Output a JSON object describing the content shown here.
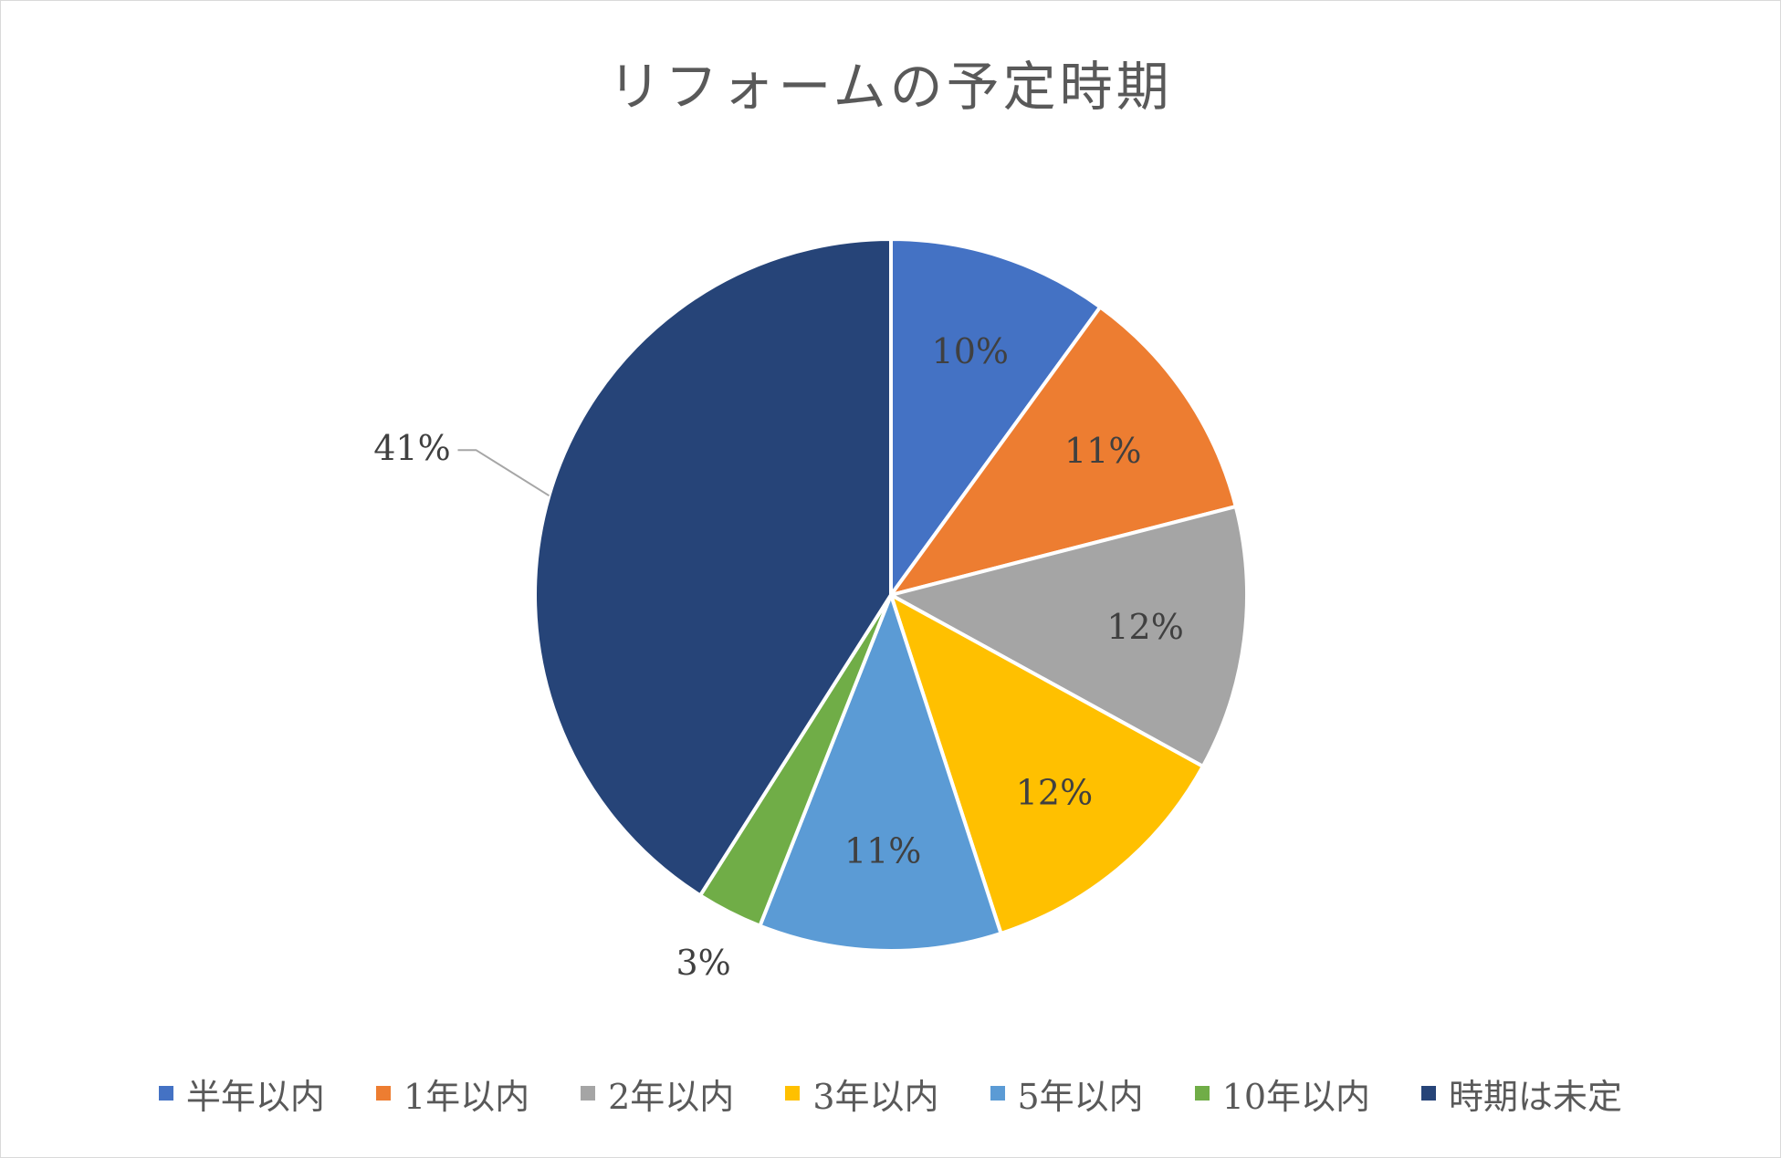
{
  "chart_data": {
    "type": "pie",
    "title": "リフォームの予定時期",
    "legend_position": "bottom",
    "start_angle_deg": 0,
    "direction": "clockwise",
    "slices": [
      {
        "label": "半年以内",
        "value": 10,
        "display": "10%",
        "color": "#4472C4",
        "label_position": "inside"
      },
      {
        "label": "1年以内",
        "value": 11,
        "display": "11%",
        "color": "#ED7D31",
        "label_position": "inside"
      },
      {
        "label": "2年以内",
        "value": 12,
        "display": "12%",
        "color": "#A5A5A5",
        "label_position": "inside"
      },
      {
        "label": "3年以内",
        "value": 12,
        "display": "12%",
        "color": "#FFC000",
        "label_position": "inside"
      },
      {
        "label": "5年以内",
        "value": 11,
        "display": "11%",
        "color": "#5B9BD5",
        "label_position": "inside"
      },
      {
        "label": "10年以内",
        "value": 3,
        "display": "3%",
        "color": "#70AD47",
        "label_position": "outside"
      },
      {
        "label": "時期は未定",
        "value": 41,
        "display": "41%",
        "color": "#264478",
        "label_position": "outside-leader"
      }
    ]
  }
}
